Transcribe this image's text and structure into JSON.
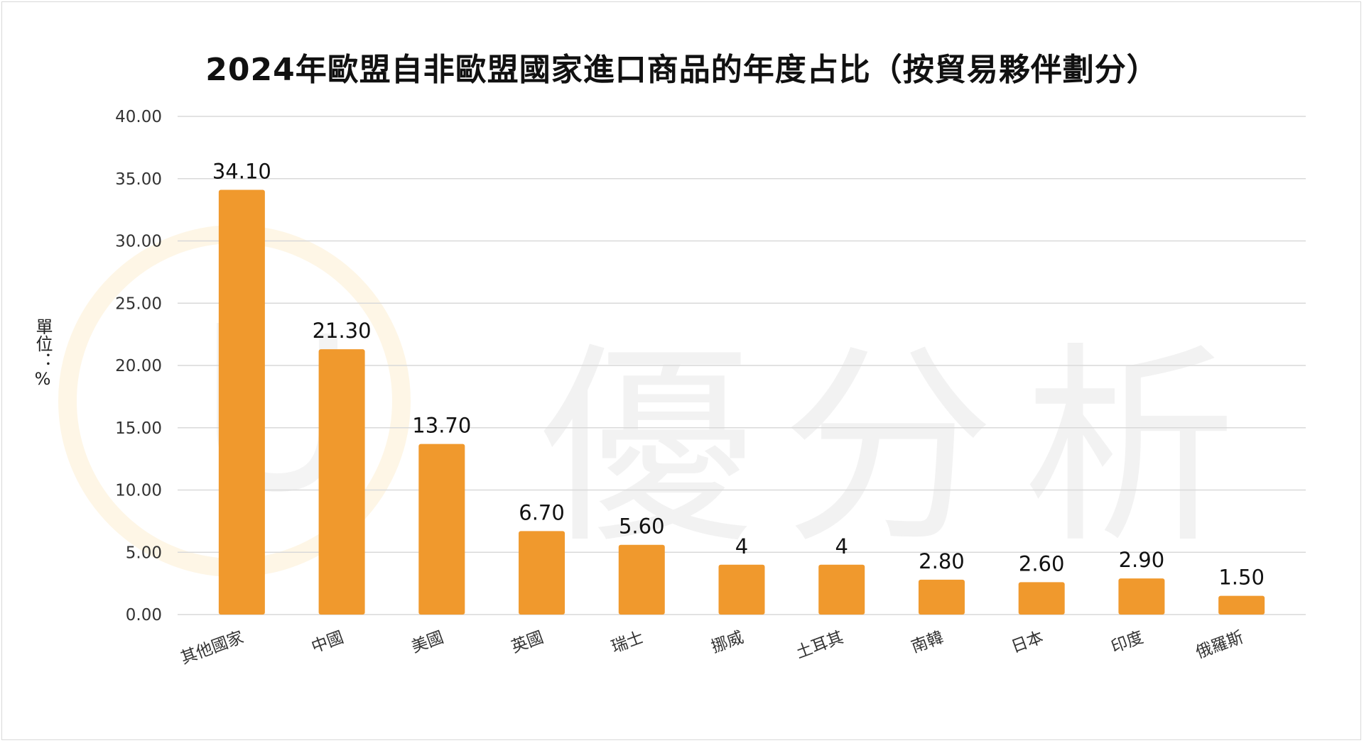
{
  "watermark_text": "優分析",
  "colors": {
    "bar": "#f0992d",
    "grid": "#d9d9d9",
    "axis_text": "#333333",
    "logo_ring": "#f5c14d"
  },
  "chart_data": {
    "type": "bar",
    "title": "2024年歐盟自非歐盟國家進口商品的年度占比（按貿易夥伴劃分）",
    "ylabel": "單位：%",
    "xlabel": "",
    "ylim": [
      0,
      40
    ],
    "ytick_step": 5,
    "ytick_labels": [
      "0.00",
      "5.00",
      "10.00",
      "15.00",
      "20.00",
      "25.00",
      "30.00",
      "35.00",
      "40.00"
    ],
    "grid": true,
    "categories": [
      "其他國家",
      "中國",
      "美國",
      "英國",
      "瑞士",
      "挪威",
      "土耳其",
      "南韓",
      "日本",
      "印度",
      "俄羅斯"
    ],
    "values": [
      34.1,
      21.3,
      13.7,
      6.7,
      5.6,
      4,
      4,
      2.8,
      2.6,
      2.9,
      1.5
    ],
    "data_labels": [
      "34.10",
      "21.30",
      "13.70",
      "6.70",
      "5.60",
      "4",
      "4",
      "2.80",
      "2.60",
      "2.90",
      "1.50"
    ]
  }
}
